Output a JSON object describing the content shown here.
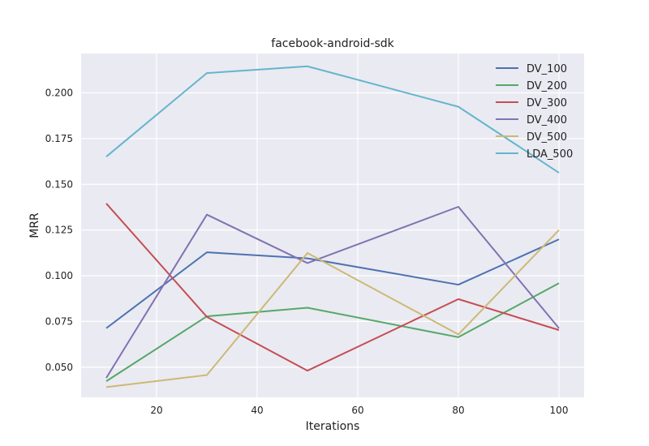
{
  "chart_data": {
    "type": "line",
    "title": "facebook-android-sdk",
    "xlabel": "Iterations",
    "ylabel": "MRR",
    "x": [
      10,
      30,
      50,
      80,
      100
    ],
    "xlim": [
      5,
      105
    ],
    "ylim": [
      0.0335,
      0.2215
    ],
    "xticks": [
      20,
      40,
      60,
      80,
      100
    ],
    "yticks": [
      0.05,
      0.075,
      0.1,
      0.125,
      0.15,
      0.175,
      0.2
    ],
    "xtick_labels": [
      "20",
      "40",
      "60",
      "80",
      "100"
    ],
    "ytick_labels": [
      "0.050",
      "0.075",
      "0.100",
      "0.125",
      "0.150",
      "0.175",
      "0.200"
    ],
    "grid": true,
    "background": "#eaeaf2",
    "legend_position": "top-right",
    "series": [
      {
        "name": "DV_100",
        "color": "#4c72b0",
        "values": [
          0.0713,
          0.1128,
          0.1095,
          0.0951,
          0.1199
        ]
      },
      {
        "name": "DV_200",
        "color": "#55a868",
        "values": [
          0.0423,
          0.0778,
          0.0825,
          0.0664,
          0.0959
        ]
      },
      {
        "name": "DV_300",
        "color": "#c44e52",
        "values": [
          0.1395,
          0.0775,
          0.0481,
          0.0872,
          0.0703
        ]
      },
      {
        "name": "DV_400",
        "color": "#8172b2",
        "values": [
          0.0441,
          0.1334,
          0.1069,
          0.1377,
          0.0713
        ]
      },
      {
        "name": "DV_500",
        "color": "#ccb974",
        "values": [
          0.0391,
          0.0457,
          0.1124,
          0.0679,
          0.125
        ]
      },
      {
        "name": "LDA_500",
        "color": "#64b5cd",
        "values": [
          0.1651,
          0.2108,
          0.2145,
          0.1924,
          0.1563
        ]
      }
    ]
  }
}
